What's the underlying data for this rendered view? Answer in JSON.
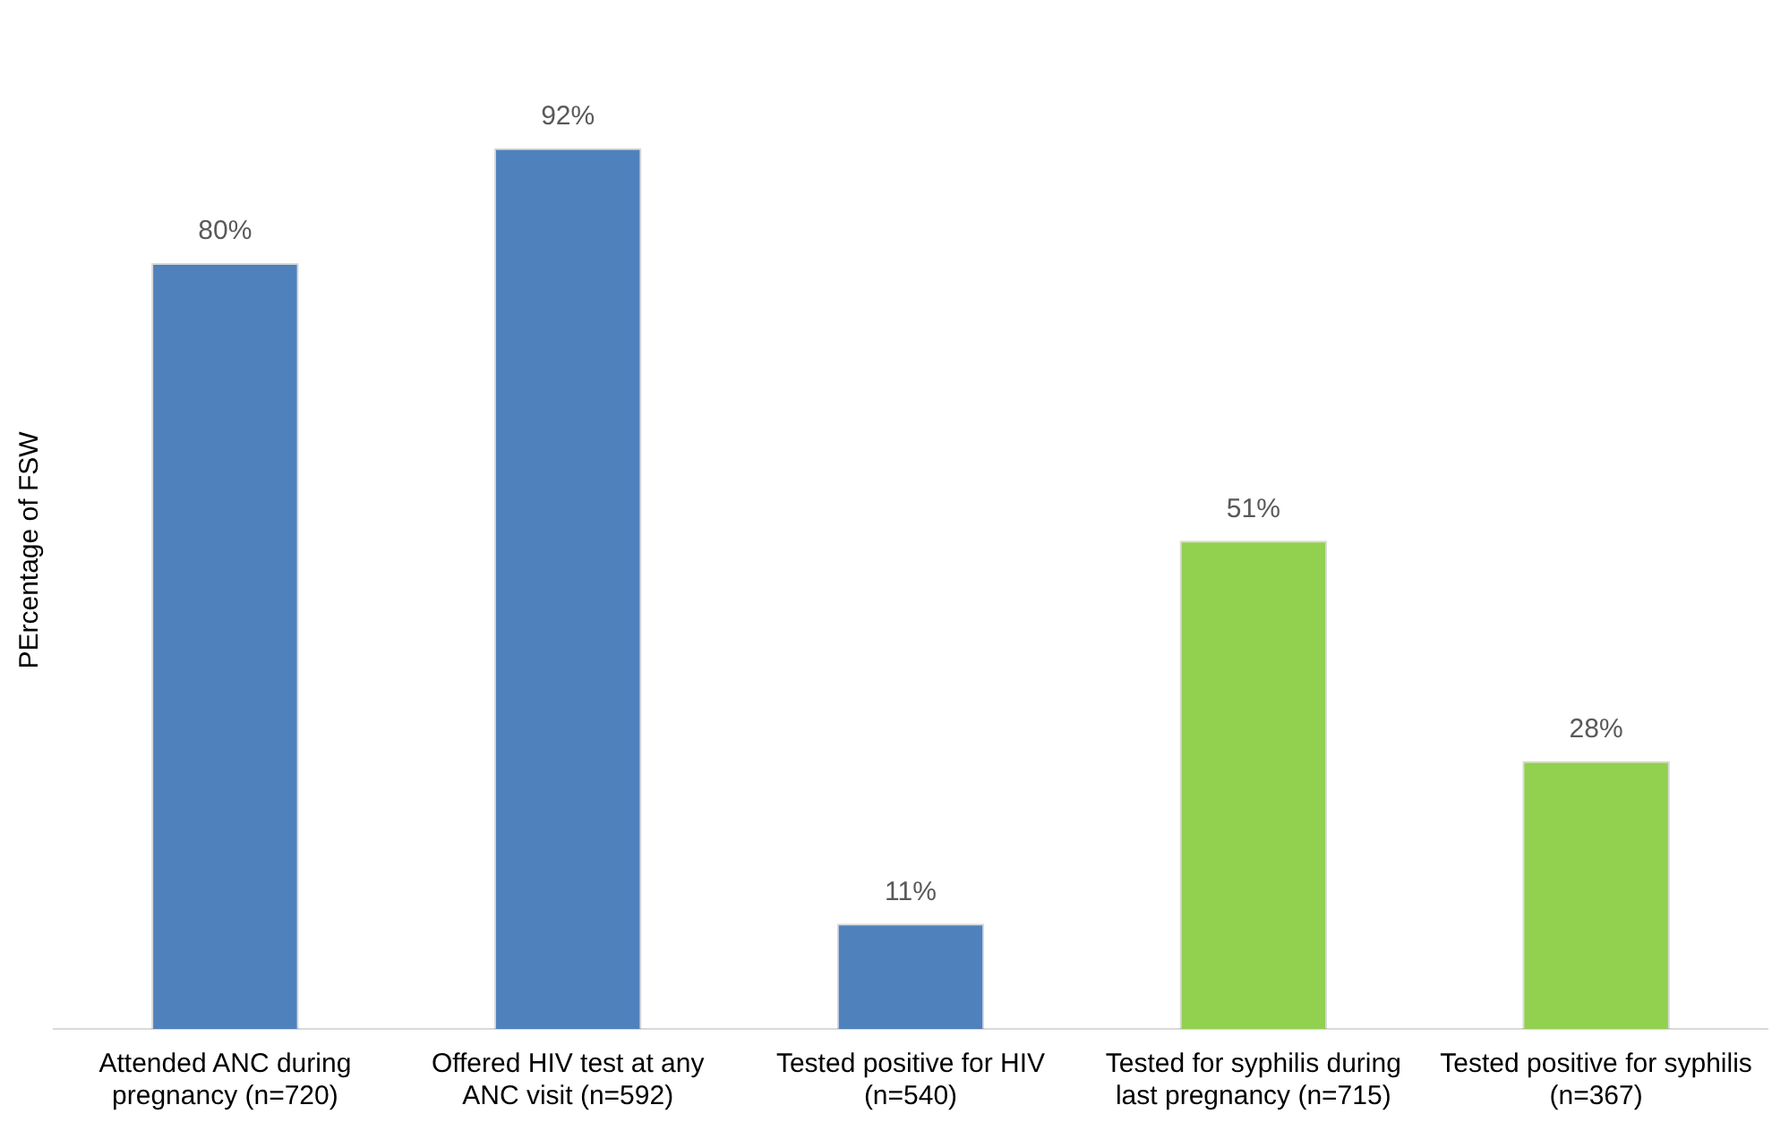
{
  "chart_data": {
    "type": "bar",
    "ylabel": "PErcentage of FSW",
    "categories": [
      "Attended ANC during pregnancy (n=720)",
      "Offered HIV test at any ANC visit (n=592)",
      "Tested positive for HIV (n=540)",
      "Tested for syphilis during last pregnancy (n=715)",
      "Tested positive for syphilis (n=367)"
    ],
    "values": [
      80,
      92,
      11,
      51,
      28
    ],
    "colors": [
      "#4f81bd",
      "#4f81bd",
      "#4f81bd",
      "#92d050",
      "#92d050"
    ],
    "value_labels": [
      "80%",
      "92%",
      "11%",
      "51%",
      "28%"
    ],
    "grid": false,
    "legend": false,
    "tick_labels": "x"
  }
}
